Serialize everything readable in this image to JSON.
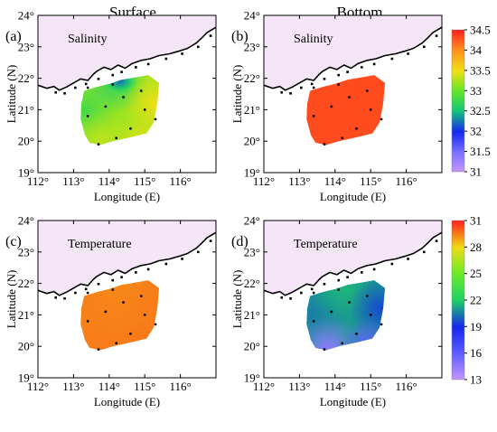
{
  "chart_data": {
    "type": "heatmap",
    "columns": [
      "Surface",
      "Bottom"
    ],
    "panels": [
      {
        "label": "(a)",
        "title": "Salinity",
        "layer": "Surface",
        "scale": "salinity",
        "field": {
          "west": 32.8,
          "north": 32.6,
          "east": 33.5,
          "south": 33.3,
          "south_east": 33.4,
          "center": 33.2,
          "patch": {
            "lon": 114.3,
            "lat": 21.9,
            "value": 32.2
          }
        }
      },
      {
        "label": "(b)",
        "title": "Salinity",
        "layer": "Bottom",
        "scale": "salinity",
        "field": {
          "west": 34.3,
          "north": 34.3,
          "east": 34.3,
          "south": 34.3,
          "south_east": 34.3,
          "center": 34.3
        }
      },
      {
        "label": "(c)",
        "title": "Temperature",
        "layer": "Surface",
        "scale": "temperature",
        "field": {
          "west": 29.4,
          "north": 29.3,
          "east": 29.5,
          "south": 29.5,
          "south_east": 29.6,
          "center": 29.4
        }
      },
      {
        "label": "(d)",
        "title": "Temperature",
        "layer": "Bottom",
        "scale": "temperature",
        "field": {
          "west": 20.5,
          "north": 21.5,
          "east": 19.5,
          "south": 14.5,
          "south_east": 15.8,
          "center": 21.0
        }
      }
    ],
    "xlabel": "Longitude (E)",
    "ylabel": "Latitude (N)",
    "xlim": [
      112,
      117
    ],
    "ylim": [
      19,
      24
    ],
    "x_ticks": [
      "112°",
      "113°",
      "114°",
      "115°",
      "116°"
    ],
    "x_tick_values": [
      112,
      113,
      114,
      115,
      116
    ],
    "y_ticks": [
      "19°",
      "20°",
      "21°",
      "22°",
      "23°",
      "24°"
    ],
    "y_tick_values": [
      19,
      20,
      21,
      22,
      23,
      24
    ],
    "stations": [
      {
        "lon": 113.4,
        "lat": 21.7
      },
      {
        "lon": 114.1,
        "lat": 21.8
      },
      {
        "lon": 114.9,
        "lat": 21.6
      },
      {
        "lon": 113.4,
        "lat": 20.8
      },
      {
        "lon": 113.9,
        "lat": 21.1
      },
      {
        "lon": 114.4,
        "lat": 21.4
      },
      {
        "lon": 115.0,
        "lat": 21.0
      },
      {
        "lon": 115.3,
        "lat": 20.7
      },
      {
        "lon": 114.6,
        "lat": 20.4
      },
      {
        "lon": 114.2,
        "lat": 20.1
      },
      {
        "lon": 113.7,
        "lat": 19.9
      }
    ],
    "colorbars": {
      "salinity": {
        "min": 31,
        "max": 34.5,
        "ticks": [
          "31",
          "31.5",
          "32",
          "32.5",
          "33",
          "33.5",
          "34",
          "34.5"
        ],
        "tick_values": [
          31,
          31.5,
          32,
          32.5,
          33,
          33.5,
          34,
          34.5
        ]
      },
      "temperature": {
        "min": 13,
        "max": 31,
        "ticks": [
          "13",
          "16",
          "19",
          "22",
          "25",
          "28",
          "31"
        ],
        "tick_values": [
          13,
          16,
          19,
          22,
          25,
          28,
          31
        ]
      }
    },
    "colors": {
      "land": "#f5e6f7",
      "coast": "#000000"
    }
  }
}
